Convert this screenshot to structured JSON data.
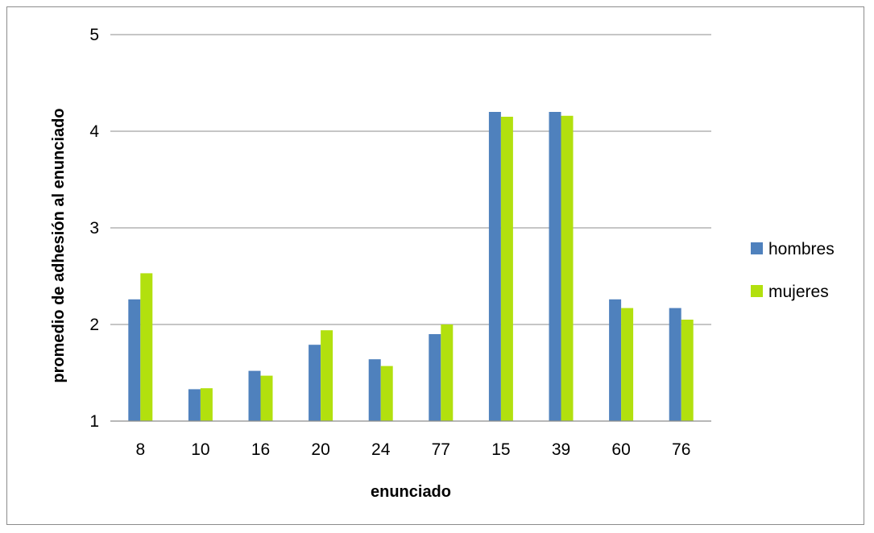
{
  "chart_data": {
    "type": "bar",
    "title": "",
    "xlabel": "enunciado",
    "ylabel": "promedio de adhesión al enunciado",
    "categories": [
      "8",
      "10",
      "16",
      "20",
      "24",
      "77",
      "15",
      "39",
      "60",
      "76"
    ],
    "series": [
      {
        "name": "hombres",
        "color": "#4F81BD",
        "values": [
          2.26,
          1.33,
          1.52,
          1.79,
          1.64,
          1.9,
          4.2,
          4.2,
          2.26,
          2.17
        ]
      },
      {
        "name": "mujeres",
        "color": "#B2E00E",
        "values": [
          2.53,
          1.34,
          1.47,
          1.94,
          1.57,
          2.0,
          4.15,
          4.16,
          2.17,
          2.05
        ]
      }
    ],
    "ylim": [
      1,
      5
    ],
    "yticks": [
      "1",
      "2",
      "3",
      "4",
      "5"
    ],
    "grid": true,
    "legend_position": "right"
  }
}
